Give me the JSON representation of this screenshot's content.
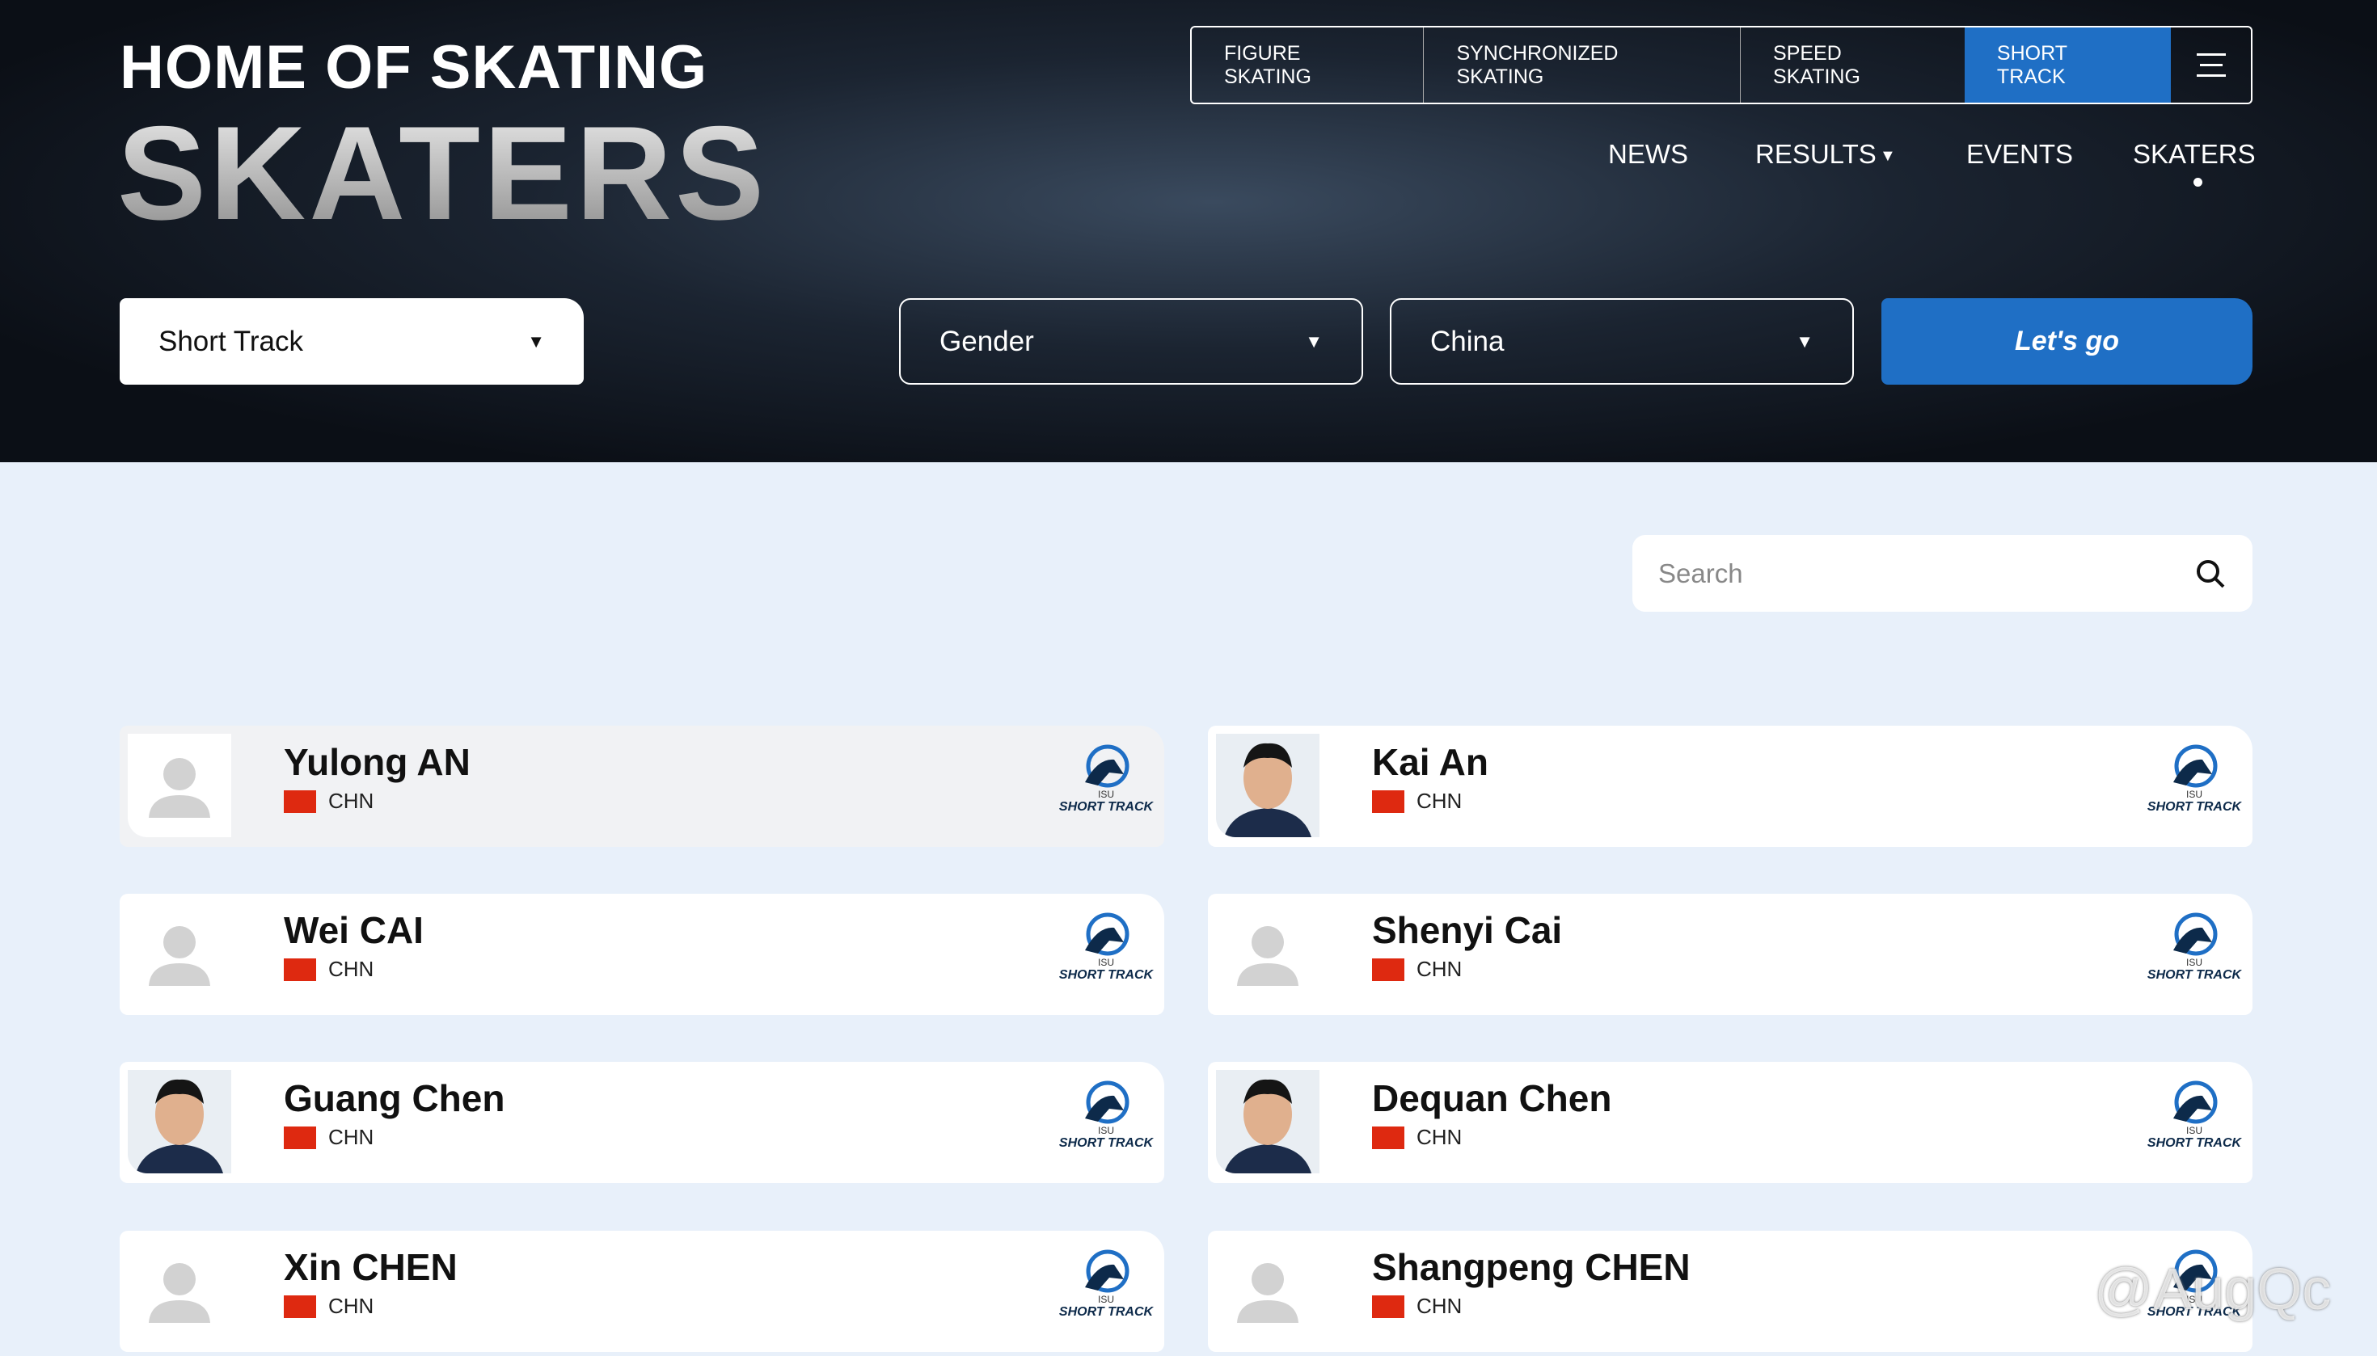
{
  "header": {
    "brand": "HOME OF SKATING",
    "page_title": "SKATERS",
    "tabs": [
      "FIGURE SKATING",
      "SYNCHRONIZED SKATING",
      "SPEED SKATING",
      "SHORT TRACK"
    ],
    "nav": [
      "NEWS",
      "RESULTS",
      "EVENTS",
      "SKATERS"
    ]
  },
  "filters": {
    "discipline": "Short Track",
    "gender": "Gender",
    "country": "China",
    "submit": "Let's go"
  },
  "search": {
    "placeholder": "Search"
  },
  "skaters": [
    {
      "name": "Yulong AN",
      "country": "CHN",
      "logo_top": "ISU",
      "logo": "SHORT TRACK",
      "photo": false
    },
    {
      "name": "Kai An",
      "country": "CHN",
      "logo_top": "ISU",
      "logo": "SHORT TRACK",
      "photo": true
    },
    {
      "name": "Wei CAI",
      "country": "CHN",
      "logo_top": "ISU",
      "logo": "SHORT TRACK",
      "photo": false
    },
    {
      "name": "Shenyi Cai",
      "country": "CHN",
      "logo_top": "ISU",
      "logo": "SHORT TRACK",
      "photo": false
    },
    {
      "name": "Guang Chen",
      "country": "CHN",
      "logo_top": "ISU",
      "logo": "SHORT TRACK",
      "photo": true
    },
    {
      "name": "Dequan Chen",
      "country": "CHN",
      "logo_top": "ISU",
      "logo": "SHORT TRACK",
      "photo": true
    },
    {
      "name": "Xin CHEN",
      "country": "CHN",
      "logo_top": "ISU",
      "logo": "SHORT TRACK",
      "photo": false
    },
    {
      "name": "Shangpeng CHEN",
      "country": "CHN",
      "logo_top": "ISU",
      "logo": "SHORT TRACK",
      "photo": false
    }
  ],
  "watermark": "@AugQc"
}
